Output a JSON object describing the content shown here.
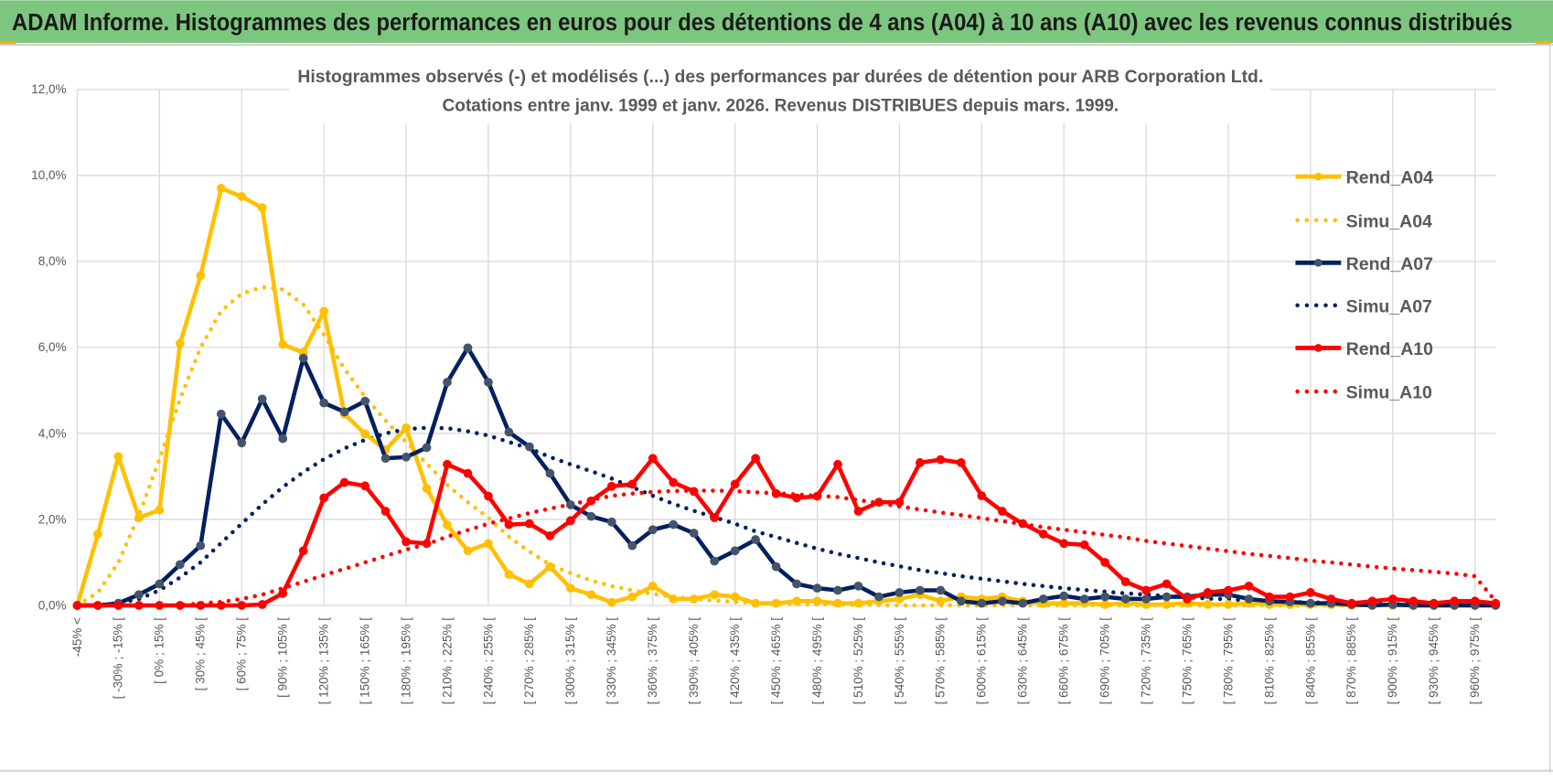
{
  "header": {
    "title": "ADAM Informe. Histogrammes des performances en euros pour des détentions de 4 ans (A04) à 10 ans (A10) avec les revenus connus distribués"
  },
  "chart_data": {
    "type": "line",
    "title_line1": "Histogrammes observés (-) et modélisés (...) des performances par durées de détention pour ARB Corporation Ltd.",
    "title_line2": "Cotations entre janv. 1999 et janv. 2026. Revenus DISTRIBUES depuis mars. 1999.",
    "xlabel": "",
    "ylabel": "",
    "ylim": [
      0,
      12
    ],
    "y_tick_labels": [
      "0,0%",
      "2,0%",
      "4,0%",
      "6,0%",
      "8,0%",
      "10,0%",
      "12,0%"
    ],
    "category_count": 70,
    "x_tick_labels": [
      "-45% <",
      "[ -30% ; -15% [",
      "[ 0% ; 15% [",
      "[ 30% ; 45% [",
      "[ 60% ; 75% [",
      "[ 90% ; 105% [",
      "[ 120% ; 135% [",
      "[ 150% ; 165% [",
      "[ 180% ; 195% [",
      "[ 210% ; 225% [",
      "[ 240% ; 255% [",
      "[ 270% ; 285% [",
      "[ 300% ; 315% [",
      "[ 330% ; 345% [",
      "[ 360% ; 375% [",
      "[ 390% ; 405% [",
      "[ 420% ; 435% [",
      "[ 450% ; 465% [",
      "[ 480% ; 495% [",
      "[ 510% ; 525% [",
      "[ 540% ; 555% [",
      "[ 570% ; 585% [",
      "[ 600% ; 615% [",
      "[ 630% ; 645% [",
      "[ 660% ; 675% [",
      "[ 690% ; 705% [",
      "[ 720% ; 735% [",
      "[ 750% ; 765% [",
      "[ 780% ; 795% [",
      "[ 810% ; 825% [",
      "[ 840% ; 855% [",
      "[ 870% ; 885% [",
      "[ 900% ; 915% [",
      "[ 930% ; 945% [",
      "[ 960% ; 975% ["
    ],
    "grid": true,
    "legend_position": "right",
    "series": [
      {
        "name": "Rend_A04",
        "style": "solid",
        "color": "#FFC000",
        "marker_color": "#FFC000",
        "values": [
          0,
          1.66,
          3.46,
          2.04,
          2.22,
          6.09,
          7.67,
          9.7,
          9.51,
          9.25,
          6.07,
          5.88,
          6.84,
          4.45,
          3.99,
          3.62,
          4.13,
          2.72,
          1.87,
          1.27,
          1.44,
          0.72,
          0.5,
          0.9,
          0.4,
          0.25,
          0.07,
          0.2,
          0.45,
          0.15,
          0.15,
          0.25,
          0.2,
          0.05,
          0.05,
          0.1,
          0.1,
          0.05,
          0.05,
          0.1,
          0.15,
          0.25,
          0.1,
          0.2,
          0.15,
          0.2,
          0.1,
          0.05,
          0.05,
          0.05,
          0.02,
          0.05,
          0.02,
          0.02,
          0.05,
          0.02,
          0.02,
          0.05,
          0.02,
          0.02,
          0.02,
          0.02,
          0,
          0.02,
          0,
          0,
          0,
          0,
          0,
          0
        ]
      },
      {
        "name": "Simu_A04",
        "style": "dotted",
        "color": "#FFC000",
        "values": [
          0,
          0.3,
          1.0,
          2.1,
          3.4,
          4.8,
          6.0,
          6.85,
          7.25,
          7.4,
          7.35,
          7.0,
          6.3,
          5.5,
          4.85,
          4.3,
          3.8,
          3.3,
          2.8,
          2.4,
          2.04,
          1.6,
          1.25,
          0.95,
          0.75,
          0.58,
          0.45,
          0.35,
          0.27,
          0.2,
          0.15,
          0.11,
          0.08,
          0.06,
          0.04,
          0.03,
          0.02,
          0.02,
          0.01,
          0.01,
          0,
          0,
          0,
          0,
          0,
          0,
          0,
          0,
          0,
          0,
          0,
          0,
          0,
          0,
          0,
          0,
          0,
          0,
          0,
          0,
          0,
          0,
          0,
          0,
          0,
          0,
          0,
          0,
          0,
          0
        ]
      },
      {
        "name": "Rend_A07",
        "style": "solid",
        "color": "#002060",
        "marker_color": "#44546A",
        "values": [
          0,
          0,
          0.05,
          0.25,
          0.5,
          0.95,
          1.39,
          4.45,
          3.78,
          4.8,
          3.88,
          5.75,
          4.71,
          4.5,
          4.75,
          3.42,
          3.45,
          3.67,
          5.19,
          5.99,
          5.19,
          4.03,
          3.69,
          3.07,
          2.34,
          2.07,
          1.94,
          1.39,
          1.76,
          1.88,
          1.68,
          1.03,
          1.27,
          1.53,
          0.9,
          0.5,
          0.4,
          0.35,
          0.45,
          0.2,
          0.3,
          0.35,
          0.35,
          0.1,
          0.05,
          0.1,
          0.05,
          0.15,
          0.22,
          0.15,
          0.2,
          0.15,
          0.15,
          0.2,
          0.2,
          0.25,
          0.25,
          0.15,
          0.1,
          0.08,
          0.05,
          0.05,
          0.02,
          0,
          0.02,
          0,
          0,
          0,
          0,
          0
        ]
      },
      {
        "name": "Simu_A07",
        "style": "dotted",
        "color": "#002060",
        "values": [
          0,
          0.01,
          0.05,
          0.15,
          0.35,
          0.65,
          1.0,
          1.45,
          1.9,
          2.35,
          2.75,
          3.1,
          3.4,
          3.65,
          3.85,
          4.0,
          4.1,
          4.13,
          4.12,
          4.05,
          3.95,
          3.8,
          3.65,
          3.45,
          3.28,
          3.12,
          2.95,
          2.75,
          2.55,
          2.36,
          2.2,
          2.05,
          1.9,
          1.72,
          1.59,
          1.45,
          1.32,
          1.2,
          1.1,
          1.0,
          0.91,
          0.82,
          0.75,
          0.68,
          0.62,
          0.56,
          0.5,
          0.45,
          0.4,
          0.36,
          0.32,
          0.28,
          0.25,
          0.22,
          0.19,
          0.16,
          0.14,
          0.12,
          0.1,
          0.08,
          0.07,
          0.06,
          0.05,
          0.04,
          0.03,
          0.03,
          0.02,
          0.02,
          0.01,
          0.01
        ]
      },
      {
        "name": "Rend_A10",
        "style": "solid",
        "color": "#FF0000",
        "marker_color": "#FF0000",
        "values": [
          0,
          0,
          0,
          0,
          0,
          0,
          0,
          0,
          0,
          0.02,
          0.28,
          1.27,
          2.5,
          2.86,
          2.78,
          2.19,
          1.48,
          1.44,
          3.28,
          3.07,
          2.54,
          1.88,
          1.9,
          1.62,
          1.97,
          2.43,
          2.77,
          2.82,
          3.42,
          2.86,
          2.65,
          2.04,
          2.82,
          3.42,
          2.6,
          2.5,
          2.54,
          3.28,
          2.19,
          2.4,
          2.4,
          3.32,
          3.39,
          3.32,
          2.55,
          2.19,
          1.9,
          1.66,
          1.44,
          1.41,
          1.0,
          0.55,
          0.35,
          0.5,
          0.15,
          0.3,
          0.35,
          0.45,
          0.2,
          0.2,
          0.3,
          0.15,
          0.05,
          0.1,
          0.15,
          0.1,
          0.05,
          0.1,
          0.1,
          0.05
        ]
      },
      {
        "name": "Simu_A10",
        "style": "dotted",
        "color": "#FF0000",
        "values": [
          0,
          0,
          0,
          0,
          0,
          0,
          0.05,
          0.08,
          0.15,
          0.25,
          0.4,
          0.55,
          0.7,
          0.85,
          1.0,
          1.15,
          1.3,
          1.42,
          1.6,
          1.75,
          1.9,
          2.02,
          2.15,
          2.25,
          2.35,
          2.45,
          2.55,
          2.6,
          2.64,
          2.66,
          2.67,
          2.67,
          2.66,
          2.63,
          2.61,
          2.58,
          2.55,
          2.52,
          2.45,
          2.38,
          2.3,
          2.23,
          2.16,
          2.1,
          2.03,
          1.96,
          1.89,
          1.82,
          1.76,
          1.7,
          1.64,
          1.58,
          1.5,
          1.44,
          1.38,
          1.32,
          1.26,
          1.2,
          1.15,
          1.1,
          1.04,
          1.0,
          0.95,
          0.9,
          0.86,
          0.82,
          0.78,
          0.74,
          0.68,
          0.1
        ]
      }
    ]
  },
  "colors": {
    "header_bg": "#7DC67F",
    "grid": "#D9D9D9",
    "text": "#595959"
  }
}
